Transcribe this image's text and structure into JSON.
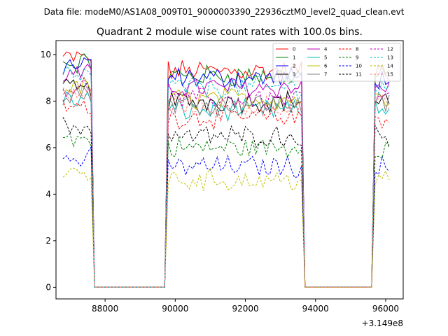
{
  "chart_data": {
    "type": "line",
    "suptitle": "Data file: modeM0/AS1A08_009T01_9000003390_22936cztM0_level2_quad_clean.evt",
    "title": "Quadrant 2 module wise count rates with 100.0s bins.",
    "xlabel": "",
    "ylabel": "",
    "x_offset_label": "+3.149e8",
    "xlim": [
      86600,
      96500
    ],
    "ylim": [
      -0.5,
      10.6
    ],
    "x_ticks": [
      88000,
      90000,
      92000,
      94000,
      96000
    ],
    "x_tick_labels": [
      "88000",
      "90000",
      "92000",
      "94000",
      "96000"
    ],
    "y_ticks": [
      0,
      2,
      4,
      6,
      8,
      10
    ],
    "y_tick_labels": [
      "0",
      "2",
      "4",
      "6",
      "8",
      "10"
    ],
    "legend_location": "top-right",
    "x_start": 86800,
    "x_step": 100,
    "gaps": [
      [
        87700,
        89700
      ],
      [
        93700,
        95600
      ]
    ],
    "segments": [
      [
        86800,
        87600
      ],
      [
        89800,
        93600
      ],
      [
        95700,
        96100
      ]
    ],
    "series": [
      {
        "name": "0",
        "color": "#ff0000",
        "style": "solid",
        "level": 9.3
      },
      {
        "name": "1",
        "color": "#008000",
        "style": "solid",
        "level": 9.1
      },
      {
        "name": "2",
        "color": "#0000ff",
        "style": "solid",
        "level": 9.0
      },
      {
        "name": "3",
        "color": "#000000",
        "style": "solid",
        "level": 8.0
      },
      {
        "name": "4",
        "color": "#bf00bf",
        "style": "solid",
        "level": 8.6
      },
      {
        "name": "5",
        "color": "#00bfbf",
        "style": "solid",
        "level": 7.6
      },
      {
        "name": "6",
        "color": "#bfbf00",
        "style": "solid",
        "level": 8.1
      },
      {
        "name": "7",
        "color": "#808080",
        "style": "solid",
        "level": 7.9
      },
      {
        "name": "8",
        "color": "#ff0000",
        "style": "dashed",
        "level": 7.3
      },
      {
        "name": "9",
        "color": "#008000",
        "style": "dashed",
        "level": 6.0
      },
      {
        "name": "10",
        "color": "#0000ff",
        "style": "dashed",
        "level": 5.2
      },
      {
        "name": "11",
        "color": "#000000",
        "style": "dashed",
        "level": 6.5
      },
      {
        "name": "12",
        "color": "#bf00bf",
        "style": "dashed",
        "level": 8.1
      },
      {
        "name": "13",
        "color": "#00bfbf",
        "style": "dashed",
        "level": 8.6
      },
      {
        "name": "14",
        "color": "#bfbf00",
        "style": "dashed",
        "level": 4.6
      },
      {
        "name": "15",
        "color": "#ff8080",
        "style": "dashed",
        "level": 7.8
      }
    ]
  }
}
